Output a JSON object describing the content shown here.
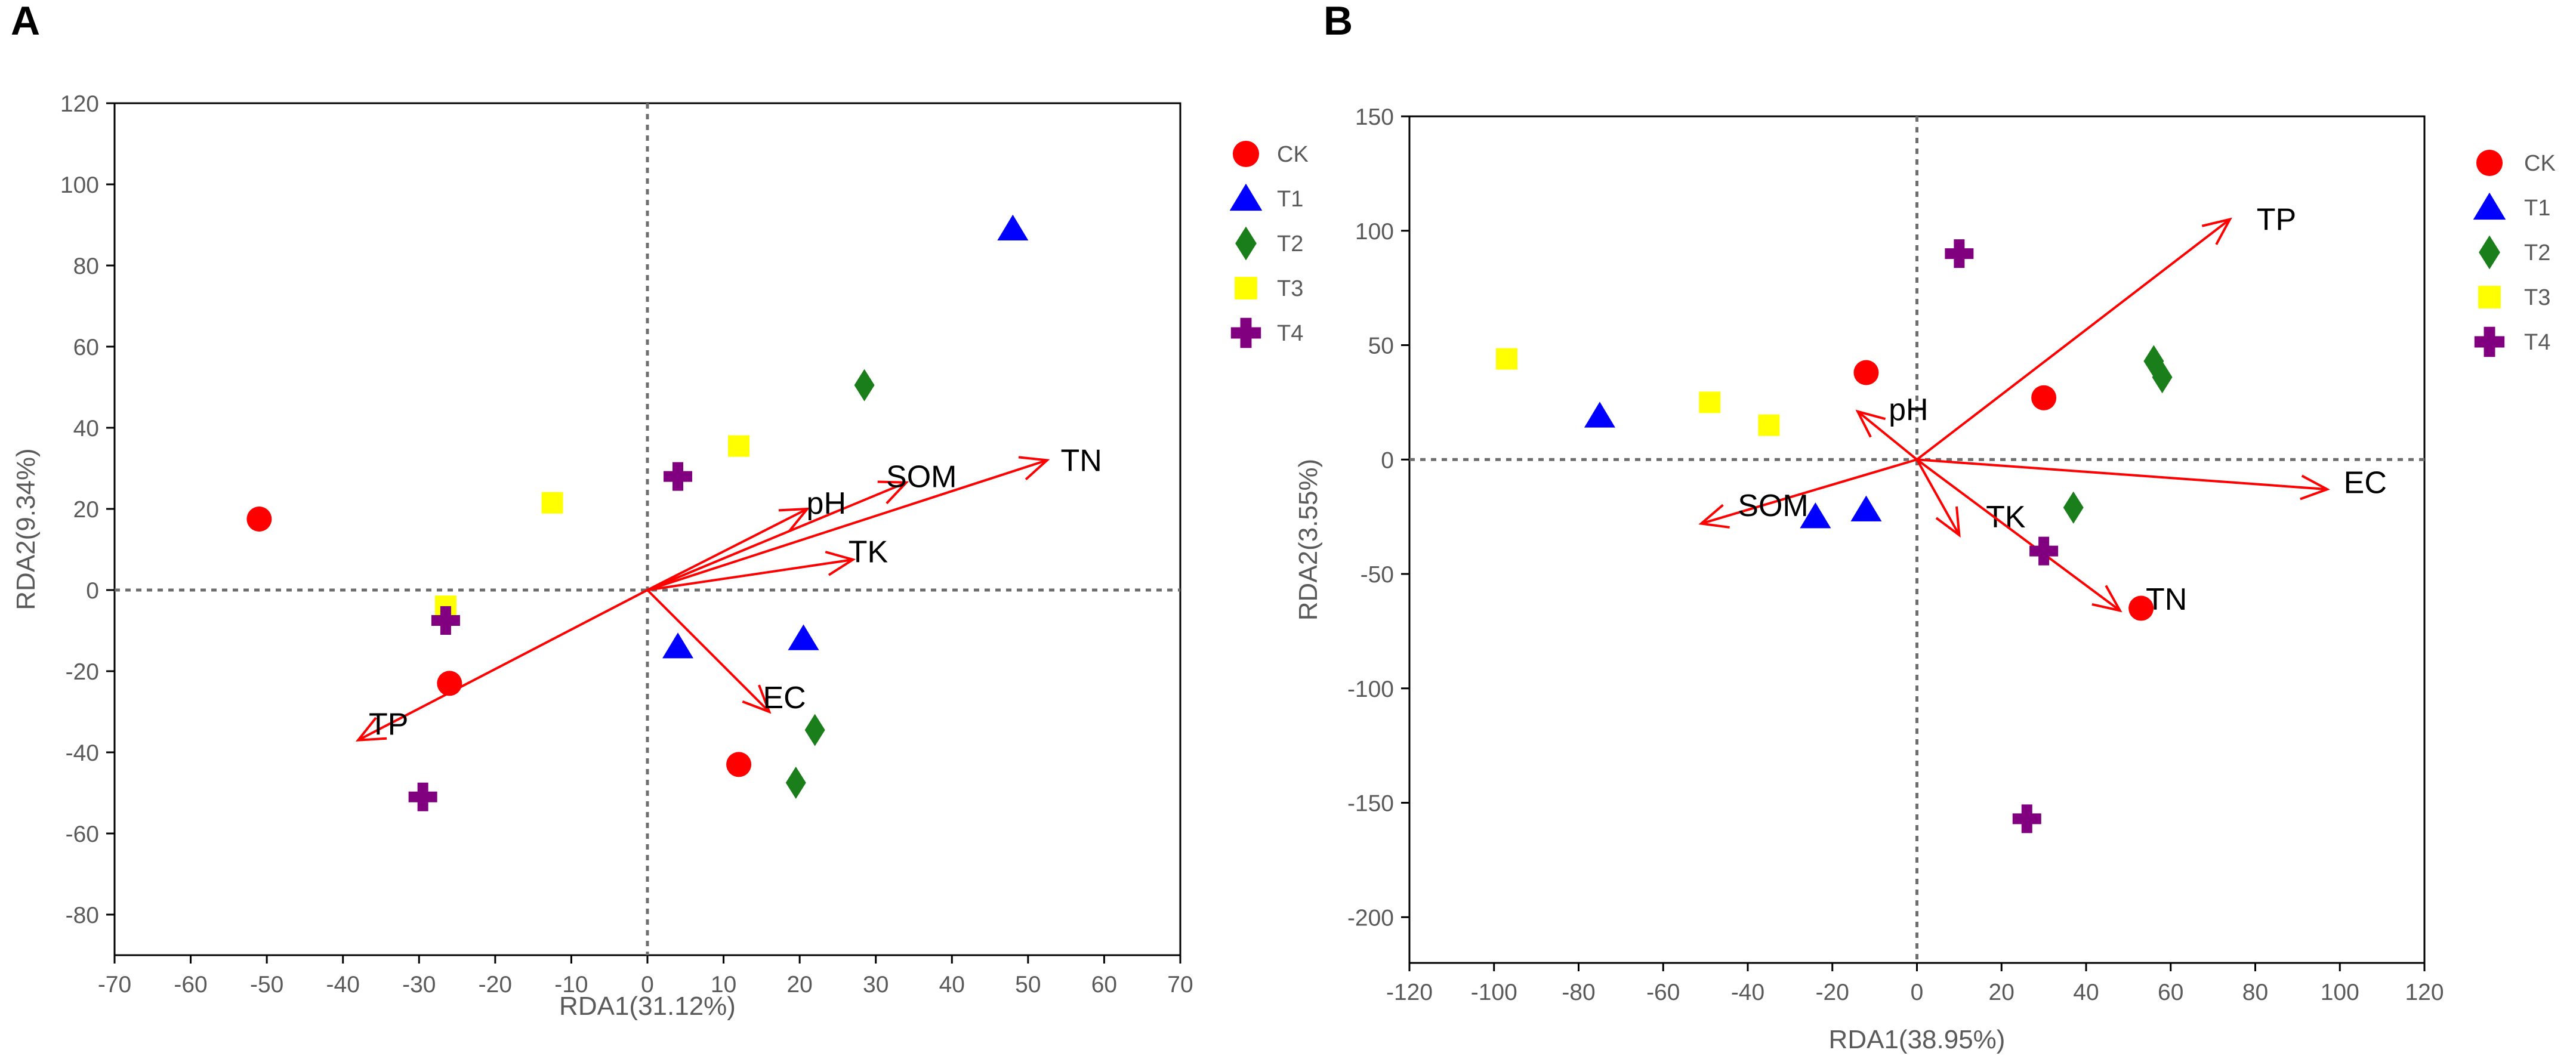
{
  "colors": {
    "CK": "#ff0000",
    "T1": "#0000ff",
    "T2": "#1a7f1a",
    "T3": "#ffff00",
    "T4": "#800080",
    "arrow": "#ff0000"
  },
  "chart_data": [
    {
      "type": "scatter",
      "panel": "A",
      "title": "",
      "xlabel": "RDA1(31.12%)",
      "ylabel": "RDA2(9.34%)",
      "xlim": [
        -70,
        70
      ],
      "ylim": [
        -90,
        120
      ],
      "xticks": [
        -70,
        -60,
        -50,
        -40,
        -30,
        -20,
        -10,
        0,
        10,
        20,
        30,
        40,
        50,
        60,
        70
      ],
      "yticks": [
        -80,
        -60,
        -40,
        -20,
        0,
        20,
        40,
        60,
        80,
        100,
        120
      ],
      "reference_lines": {
        "x": 0,
        "y": 0,
        "style": "dotted"
      },
      "legend": {
        "position": "right",
        "entries": [
          "CK",
          "T1",
          "T2",
          "T3",
          "T4"
        ]
      },
      "series": [
        {
          "name": "CK",
          "marker": "circle",
          "points": [
            [
              -51,
              17.5
            ],
            [
              -26,
              -23
            ],
            [
              12,
              -43
            ]
          ]
        },
        {
          "name": "T1",
          "marker": "triangle",
          "points": [
            [
              48,
              89
            ],
            [
              4,
              -14
            ],
            [
              20.5,
              -12
            ]
          ]
        },
        {
          "name": "T2",
          "marker": "diamond",
          "points": [
            [
              28.5,
              50.5
            ],
            [
              22,
              -34.5
            ],
            [
              19.5,
              -47.5
            ]
          ]
        },
        {
          "name": "T3",
          "marker": "square",
          "points": [
            [
              -12.5,
              21.5
            ],
            [
              12,
              35.5
            ],
            [
              -26.5,
              -4
            ]
          ]
        },
        {
          "name": "T4",
          "marker": "plus",
          "points": [
            [
              4,
              28
            ],
            [
              -26.5,
              -7.5
            ],
            [
              -29.5,
              -51
            ]
          ]
        }
      ],
      "vectors": [
        {
          "label": "TN",
          "x": 52.5,
          "y": 32,
          "label_x": 57,
          "label_y": 32
        },
        {
          "label": "SOM",
          "x": 34,
          "y": 26.5,
          "label_x": 36,
          "label_y": 28
        },
        {
          "label": "pH",
          "x": 21,
          "y": 20,
          "label_x": 23.5,
          "label_y": 21.5
        },
        {
          "label": "TK",
          "x": 27,
          "y": 7.5,
          "label_x": 29,
          "label_y": 9.5
        },
        {
          "label": "EC",
          "x": 16,
          "y": -30,
          "label_x": 18,
          "label_y": -26.5
        },
        {
          "label": "TP",
          "x": -38,
          "y": -37,
          "label_x": -34,
          "label_y": -33
        }
      ]
    },
    {
      "type": "scatter",
      "panel": "B",
      "title": "",
      "xlabel": "RDA1(38.95%)",
      "ylabel": "RDA2(3.55%)",
      "xlim": [
        -120,
        120
      ],
      "ylim": [
        -220,
        150
      ],
      "xticks": [
        -120,
        -100,
        -80,
        -60,
        -40,
        -20,
        0,
        20,
        40,
        60,
        80,
        100,
        120
      ],
      "yticks": [
        -200,
        -150,
        -100,
        -50,
        0,
        50,
        100,
        150
      ],
      "reference_lines": {
        "x": 0,
        "y": 0,
        "style": "dotted"
      },
      "legend": {
        "position": "right",
        "entries": [
          "CK",
          "T1",
          "T2",
          "T3",
          "T4"
        ]
      },
      "series": [
        {
          "name": "CK",
          "marker": "circle",
          "points": [
            [
              -12,
              38
            ],
            [
              30,
              27
            ],
            [
              53,
              -65
            ]
          ]
        },
        {
          "name": "T1",
          "marker": "triangle",
          "points": [
            [
              -75,
              19
            ],
            [
              -24,
              -25
            ],
            [
              -12,
              -22
            ]
          ]
        },
        {
          "name": "T2",
          "marker": "diamond",
          "points": [
            [
              56,
              43
            ],
            [
              58,
              36
            ],
            [
              37,
              -21
            ]
          ]
        },
        {
          "name": "T3",
          "marker": "square",
          "points": [
            [
              -97,
              44
            ],
            [
              -49,
              25
            ],
            [
              -35,
              15
            ]
          ]
        },
        {
          "name": "T4",
          "marker": "plus",
          "points": [
            [
              10,
              90
            ],
            [
              30,
              -40
            ],
            [
              26,
              -157
            ]
          ]
        }
      ],
      "vectors": [
        {
          "label": "TP",
          "x": 74,
          "y": 105,
          "label_x": 85,
          "label_y": 105
        },
        {
          "label": "pH",
          "x": -14,
          "y": 21,
          "label_x": -2,
          "label_y": 22
        },
        {
          "label": "EC",
          "x": 97,
          "y": -13,
          "label_x": 106,
          "label_y": -10
        },
        {
          "label": "SOM",
          "x": -51,
          "y": -28,
          "label_x": -34,
          "label_y": -20
        },
        {
          "label": "TK",
          "x": 10,
          "y": -33,
          "label_x": 21,
          "label_y": -25
        },
        {
          "label": "TN",
          "x": 48,
          "y": -66,
          "label_x": 59,
          "label_y": -61
        }
      ]
    }
  ]
}
